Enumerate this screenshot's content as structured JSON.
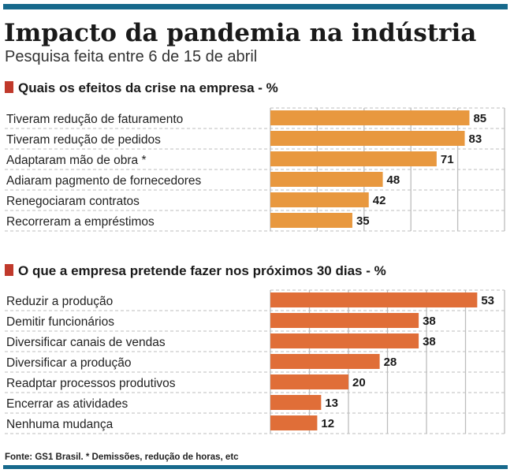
{
  "title": "Impacto da pandemia na indústria",
  "subtitle": "Pesquisa feita entre 6 de 15 de abril",
  "footnote": "Fonte: GS1 Brasil. * Demissões, redução de horas, etc",
  "colors": {
    "rule": "#17698c",
    "marker": "#c0392b",
    "series1": "#e8983f",
    "series2": "#e06e38",
    "grid": "#bdbdbd"
  },
  "chart_data": [
    {
      "type": "bar",
      "orientation": "horizontal",
      "title": "Quais os efeitos da crise na empresa - %",
      "categories": [
        "Tiveram redução de faturamento",
        "Tiveram redução de pedidos",
        "Adaptaram mão de obra *",
        "Adiaram pagmento de fornecedores",
        "Renegociaram contratos",
        "Recorreram a empréstimos"
      ],
      "values": [
        85,
        83,
        71,
        48,
        42,
        35
      ],
      "xlim": [
        0,
        100
      ],
      "grid_step": 20,
      "grid": true
    },
    {
      "type": "bar",
      "orientation": "horizontal",
      "title": "O que a empresa pretende fazer nos próximos 30 dias - %",
      "categories": [
        "Reduzir a produção",
        "Demitir funcionários",
        "Diversificar canais de vendas",
        "Diversificar a produção",
        "Readptar processos produtivos",
        "Encerrar as atividades",
        "Nenhuma mudança"
      ],
      "values": [
        53,
        38,
        38,
        28,
        20,
        13,
        12
      ],
      "xlim": [
        0,
        60
      ],
      "grid_step": 10,
      "grid": true
    }
  ]
}
